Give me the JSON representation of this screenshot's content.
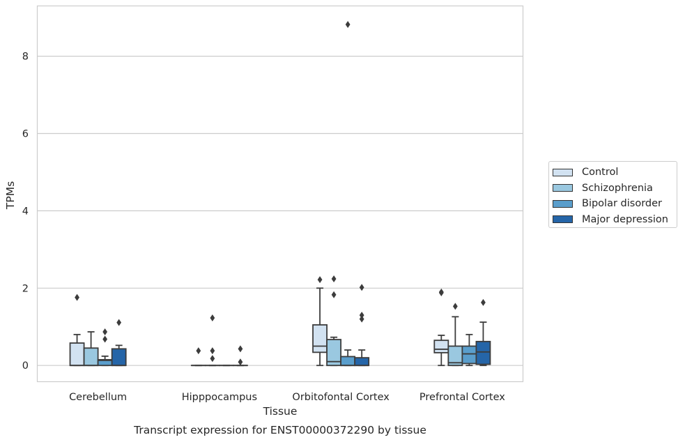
{
  "chart_data": {
    "type": "box",
    "title": "Transcript expression for ENST00000372290 by tissue",
    "xlabel": "Tissue",
    "ylabel": "TPMs",
    "ylim": [
      -0.42,
      9.3
    ],
    "yticks": [
      0,
      2,
      4,
      6,
      8
    ],
    "categories": [
      "Cerebellum",
      "Hipppocampus",
      "Orbitofontal Cortex",
      "Prefrontal Cortex"
    ],
    "grid": true,
    "legend_position": "right",
    "series": [
      {
        "name": "Control",
        "color": "#d2e2f1",
        "boxes": [
          {
            "q1": 0.0,
            "median": 0.0,
            "q3": 0.58,
            "whisker_low": 0.0,
            "whisker_high": 0.8,
            "outliers": [
              1.76
            ]
          },
          {
            "q1": 0.0,
            "median": 0.0,
            "q3": 0.0,
            "whisker_low": 0.0,
            "whisker_high": 0.0,
            "outliers": [
              0.38
            ]
          },
          {
            "q1": 0.34,
            "median": 0.5,
            "q3": 1.05,
            "whisker_low": 0.0,
            "whisker_high": 2.0,
            "outliers": [
              2.22
            ]
          },
          {
            "q1": 0.33,
            "median": 0.42,
            "q3": 0.65,
            "whisker_low": 0.0,
            "whisker_high": 0.78,
            "outliers": [
              1.9,
              1.88
            ]
          }
        ]
      },
      {
        "name": "Schizophrenia",
        "color": "#9ac8e0",
        "boxes": [
          {
            "q1": 0.0,
            "median": 0.0,
            "q3": 0.45,
            "whisker_low": 0.0,
            "whisker_high": 0.87,
            "outliers": []
          },
          {
            "q1": 0.0,
            "median": 0.0,
            "q3": 0.0,
            "whisker_low": 0.0,
            "whisker_high": 0.0,
            "outliers": [
              1.23,
              0.38,
              0.18
            ]
          },
          {
            "q1": 0.0,
            "median": 0.1,
            "q3": 0.67,
            "whisker_low": 0.0,
            "whisker_high": 0.73,
            "outliers": [
              2.24,
              1.83
            ]
          },
          {
            "q1": 0.0,
            "median": 0.07,
            "q3": 0.5,
            "whisker_low": 0.0,
            "whisker_high": 1.26,
            "outliers": [
              1.53
            ]
          }
        ]
      },
      {
        "name": "Bipolar disorder",
        "color": "#5a9ecc",
        "boxes": [
          {
            "q1": 0.0,
            "median": 0.13,
            "q3": 0.15,
            "whisker_low": 0.0,
            "whisker_high": 0.24,
            "outliers": [
              0.87,
              0.68
            ]
          },
          {
            "q1": 0.0,
            "median": 0.0,
            "q3": 0.0,
            "whisker_low": 0.0,
            "whisker_high": 0.0,
            "outliers": []
          },
          {
            "q1": 0.0,
            "median": 0.0,
            "q3": 0.23,
            "whisker_low": 0.0,
            "whisker_high": 0.4,
            "outliers": [
              8.82
            ]
          },
          {
            "q1": 0.05,
            "median": 0.3,
            "q3": 0.5,
            "whisker_low": 0.0,
            "whisker_high": 0.8,
            "outliers": []
          }
        ]
      },
      {
        "name": "Major depression",
        "color": "#2565a8",
        "boxes": [
          {
            "q1": 0.0,
            "median": 0.0,
            "q3": 0.43,
            "whisker_low": 0.0,
            "whisker_high": 0.52,
            "outliers": [
              1.11
            ]
          },
          {
            "q1": 0.0,
            "median": 0.0,
            "q3": 0.0,
            "whisker_low": 0.0,
            "whisker_high": 0.0,
            "outliers": [
              0.43,
              0.09
            ]
          },
          {
            "q1": 0.0,
            "median": 0.0,
            "q3": 0.2,
            "whisker_low": 0.0,
            "whisker_high": 0.4,
            "outliers": [
              2.02,
              1.3,
              1.2
            ]
          },
          {
            "q1": 0.03,
            "median": 0.35,
            "q3": 0.62,
            "whisker_low": 0.0,
            "whisker_high": 1.12,
            "outliers": [
              1.63
            ]
          }
        ]
      }
    ]
  }
}
